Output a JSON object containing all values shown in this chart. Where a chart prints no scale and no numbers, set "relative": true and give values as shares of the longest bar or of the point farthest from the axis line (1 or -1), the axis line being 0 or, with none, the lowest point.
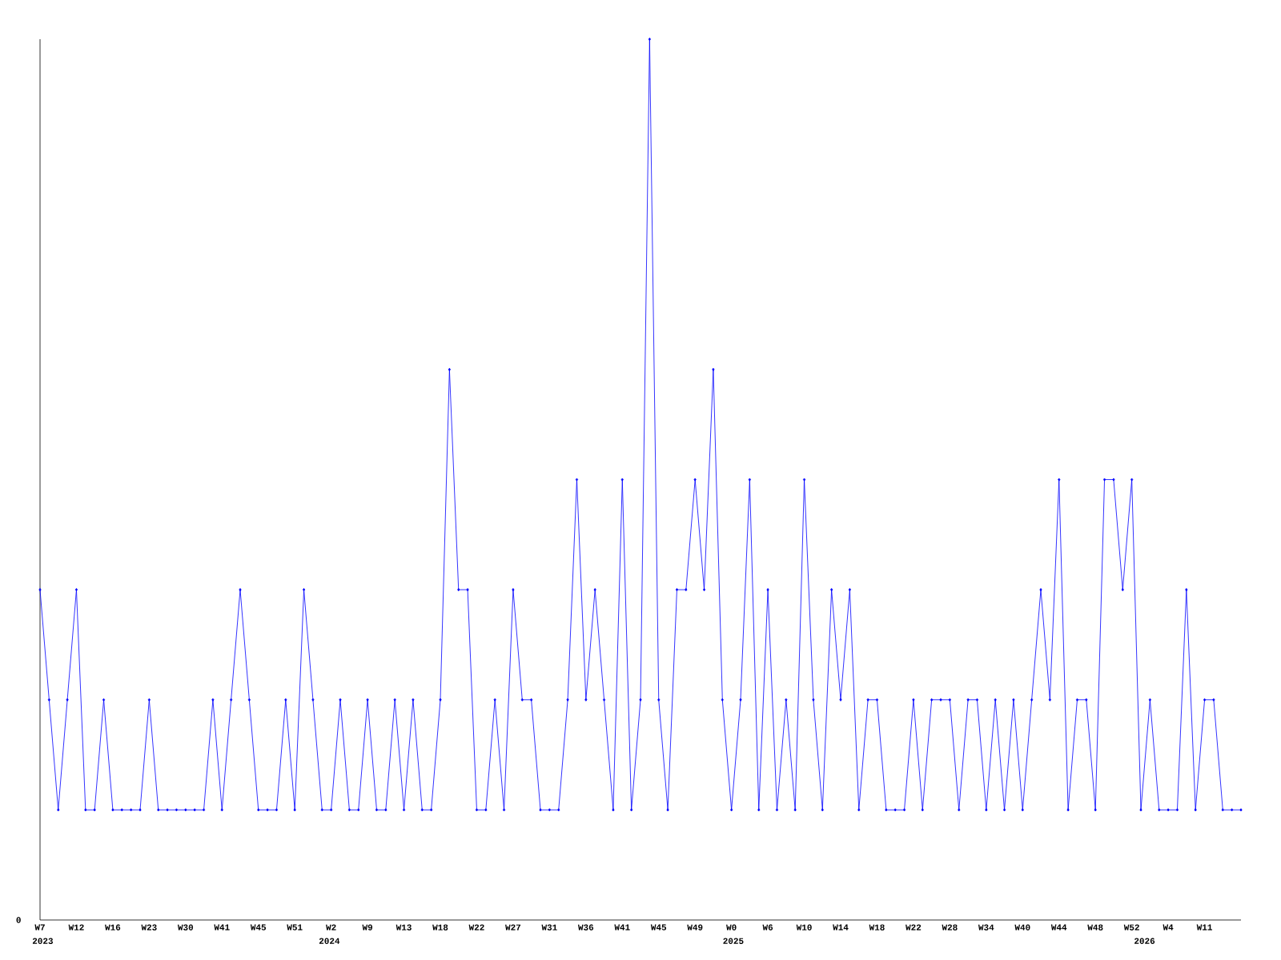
{
  "chart_data": {
    "type": "line",
    "relative": true,
    "color": "#0000ff",
    "marker": "diamond",
    "categories": [
      "W7",
      null,
      null,
      null,
      "W12",
      null,
      null,
      null,
      "W16",
      null,
      null,
      null,
      "W23",
      null,
      null,
      null,
      "W30",
      null,
      null,
      null,
      "W41",
      null,
      null,
      null,
      "W45",
      null,
      null,
      null,
      "W51",
      null,
      null,
      null,
      "W2",
      null,
      null,
      null,
      "W9",
      null,
      null,
      null,
      "W13",
      null,
      null,
      null,
      "W18",
      null,
      null,
      null,
      "W22",
      null,
      null,
      null,
      "W27",
      null,
      null,
      null,
      "W31",
      null,
      null,
      null,
      "W36",
      null,
      null,
      null,
      "W41",
      null,
      null,
      null,
      "W45",
      null,
      null,
      null,
      "W49",
      null,
      null,
      null,
      "W0",
      null,
      null,
      null,
      "W6",
      null,
      null,
      null,
      "W10",
      null,
      null,
      null,
      "W14",
      null,
      null,
      null,
      "W18",
      null,
      null,
      null,
      "W22",
      null,
      null,
      null,
      "W28",
      null,
      null,
      null,
      "W34",
      null,
      null,
      null,
      "W40",
      null,
      null,
      null,
      "W44",
      null,
      null,
      null,
      "W48",
      null,
      null,
      null,
      "W52",
      null,
      null,
      null,
      "W4",
      null,
      null,
      null,
      "W11",
      null,
      null,
      null,
      null
    ],
    "values": [
      0.375,
      0.25,
      0.125,
      0.25,
      0.375,
      0.125,
      0.125,
      0.25,
      0.125,
      0.125,
      0.125,
      0.125,
      0.25,
      0.125,
      0.125,
      0.125,
      0.125,
      0.125,
      0.125,
      0.25,
      0.125,
      0.25,
      0.375,
      0.25,
      0.125,
      0.125,
      0.125,
      0.25,
      0.125,
      0.375,
      0.25,
      0.125,
      0.125,
      0.25,
      0.125,
      0.125,
      0.25,
      0.125,
      0.125,
      0.25,
      0.125,
      0.25,
      0.125,
      0.125,
      0.25,
      0.625,
      0.375,
      0.375,
      0.125,
      0.125,
      0.25,
      0.125,
      0.375,
      0.25,
      0.25,
      0.125,
      0.125,
      0.125,
      0.25,
      0.5,
      0.25,
      0.375,
      0.25,
      0.125,
      0.5,
      0.125,
      0.25,
      1,
      0.25,
      0.125,
      0.375,
      0.375,
      0.5,
      0.375,
      0.625,
      0.25,
      0.125,
      0.25,
      0.5,
      0.125,
      0.375,
      0.125,
      0.25,
      0.125,
      0.5,
      0.25,
      0.125,
      0.375,
      0.25,
      0.375,
      0.125,
      0.25,
      0.25,
      0.125,
      0.125,
      0.125,
      0.25,
      0.125,
      0.25,
      0.25,
      0.25,
      0.125,
      0.25,
      0.25,
      0.125,
      0.25,
      0.125,
      0.25,
      0.125,
      0.25,
      0.375,
      0.25,
      0.5,
      0.125,
      0.25,
      0.25,
      0.125,
      0.5,
      0.5,
      0.375,
      0.5,
      0.125,
      0.25,
      0.125,
      0.125,
      0.125,
      0.375,
      0.125,
      0.25,
      0.25,
      0.125,
      0.125,
      0.125
    ],
    "annotations": [
      "0",
      "2023",
      "2024",
      "2025",
      "2026"
    ]
  }
}
